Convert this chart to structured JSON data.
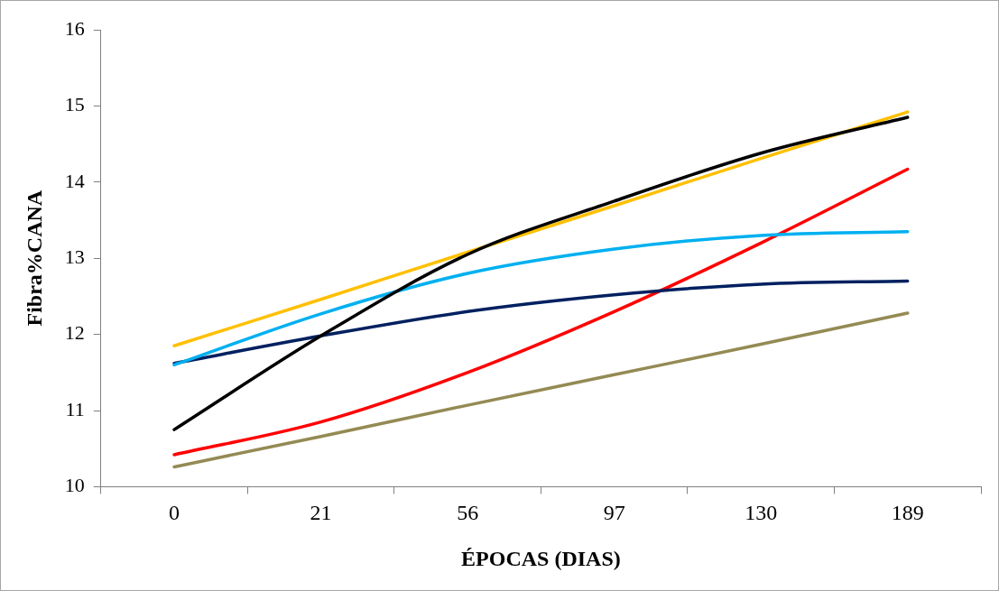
{
  "chart_data": {
    "type": "line",
    "xlabel": "ÉPOCAS (DIAS)",
    "ylabel": "Fibra%CANA",
    "categories": [
      "0",
      "21",
      "56",
      "97",
      "130",
      "189"
    ],
    "ylim": [
      10,
      16
    ],
    "yticks": [
      10,
      11,
      12,
      13,
      14,
      15,
      16
    ],
    "grid": false,
    "legend": false,
    "marker": "none",
    "line_style": "solid",
    "series": [
      {
        "color": "#000000",
        "values": [
          10.75,
          11.98,
          13.05,
          13.75,
          14.38,
          14.85
        ]
      },
      {
        "color": "#ffc000",
        "values": [
          11.85,
          12.46,
          13.08,
          13.69,
          14.31,
          14.92
        ]
      },
      {
        "color": "#00b0f0",
        "values": [
          11.6,
          12.27,
          12.8,
          13.12,
          13.3,
          13.35
        ]
      },
      {
        "color": "#002060",
        "values": [
          11.62,
          11.98,
          12.3,
          12.52,
          12.66,
          12.7
        ]
      },
      {
        "color": "#ff0000",
        "values": [
          10.42,
          10.85,
          11.5,
          12.3,
          13.2,
          14.17
        ]
      },
      {
        "color": "#948a54",
        "values": [
          10.26,
          10.66,
          11.07,
          11.47,
          11.87,
          12.28
        ]
      }
    ]
  }
}
